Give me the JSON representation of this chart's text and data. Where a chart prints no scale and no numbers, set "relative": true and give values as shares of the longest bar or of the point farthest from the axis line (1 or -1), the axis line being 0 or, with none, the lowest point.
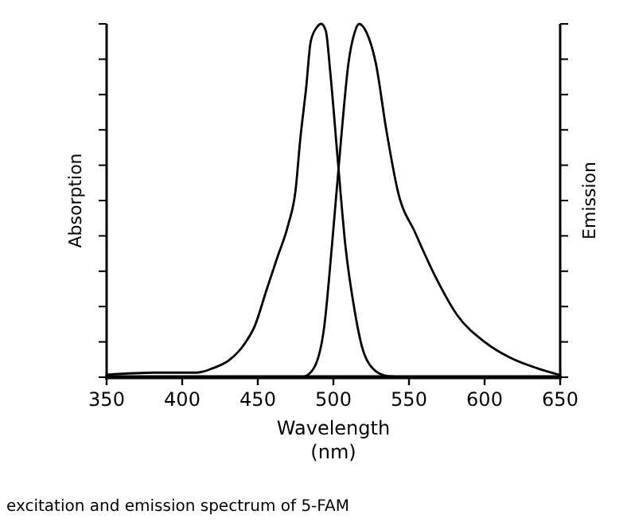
{
  "chart_data": {
    "type": "line",
    "relative": true,
    "xlabel": "Wavelength\n(nm)",
    "ylabel": "Absorption",
    "y2label": "Emission",
    "xlim": [
      350,
      650
    ],
    "xticks": [
      350,
      400,
      450,
      500,
      550,
      600,
      650
    ],
    "line_style": "solid",
    "annotations": [
      "excitation and emission spectrum of 5-FAM"
    ],
    "series": [
      {
        "color": "#000000",
        "x": [
          350,
          382,
          410,
          420,
          431,
          441,
          448,
          456,
          463,
          470,
          475,
          478,
          482,
          485,
          489,
          492,
          495,
          498,
          503,
          508,
          514,
          519,
          526,
          536,
          549
        ],
        "values": [
          0.007,
          0.013,
          0.013,
          0.025,
          0.048,
          0.093,
          0.145,
          0.25,
          0.34,
          0.43,
          0.53,
          0.67,
          0.82,
          0.95,
          0.99,
          1,
          0.98,
          0.86,
          0.61,
          0.37,
          0.19,
          0.085,
          0.025,
          0.003,
          0
        ]
      },
      {
        "color": "#000000",
        "axis": "y2",
        "x": [
          480,
          487,
          494,
          499,
          505,
          510,
          514,
          517,
          522,
          528,
          535,
          543,
          554,
          568,
          582,
          600,
          617,
          635,
          650
        ],
        "values": [
          0,
          0.025,
          0.145,
          0.37,
          0.67,
          0.89,
          0.975,
          1,
          0.975,
          0.89,
          0.7,
          0.52,
          0.41,
          0.28,
          0.175,
          0.1,
          0.055,
          0.025,
          0.006
        ]
      }
    ]
  }
}
